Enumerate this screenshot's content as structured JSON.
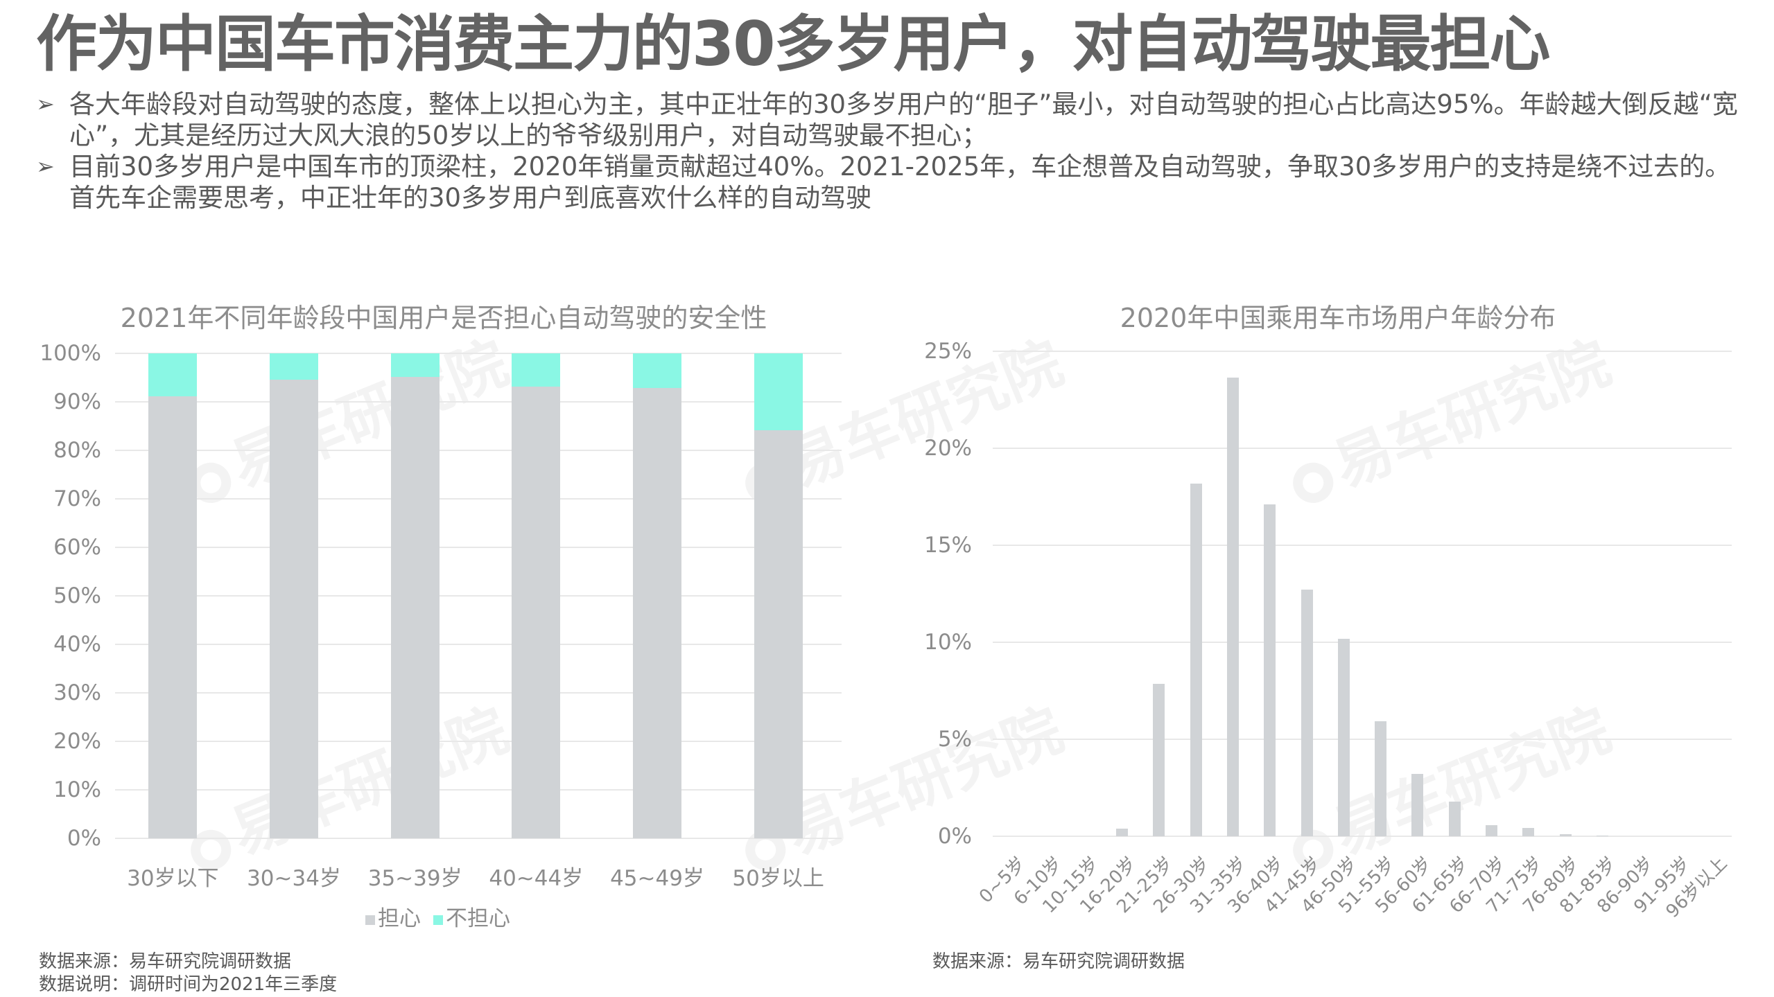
{
  "page": {
    "title": "作为中国车市消费主力的30多岁用户，对自动驾驶最担心",
    "bullets": [
      {
        "icon": "arrow-bullet-icon",
        "text": "各大年龄段对自动驾驶的态度，整体上以担心为主，其中正壮年的30多岁用户的“胆子”最小，对自动驾驶的担心占比高达95%。年龄越大倒反越“宽心”，尤其是经历过大风大浪的50岁以上的爷爷级别用户，对自动驾驶最不担心；"
      },
      {
        "icon": "arrow-bullet-icon",
        "text": "目前30多岁用户是中国车市的顶梁柱，2020年销量贡献超过40%。2021-2025年，车企想普及自动驾驶，争取30多岁用户的支持是绕不过去的。首先车企需要思考，中正壮年的30多岁用户到底喜欢什么样的自动驾驶"
      }
    ],
    "bullet_mark": "➢",
    "watermark": "易车研究院",
    "colors": {
      "worried": "#d0d3d6",
      "not_worried": "#8af7e4",
      "bar": "#d0d3d6",
      "grid": "#e8e8e8",
      "text": "#8c8c8c",
      "title": "#636363"
    }
  },
  "left_chart": {
    "title": "2021年不同年龄段中国用户是否担心自动驾驶的安全性",
    "yticks": [
      "100%",
      "90%",
      "80%",
      "70%",
      "60%",
      "50%",
      "40%",
      "30%",
      "20%",
      "10%",
      "0%"
    ],
    "legend": [
      {
        "label": "担心",
        "color": "#d0d3d6"
      },
      {
        "label": "不担心",
        "color": "#8af7e4"
      }
    ],
    "footnotes": [
      "数据来源：易车研究院调研数据",
      "数据说明：调研时间为2021年三季度"
    ]
  },
  "right_chart": {
    "title": "2020年中国乘用车市场用户年龄分布",
    "yticks": [
      "25%",
      "20%",
      "15%",
      "10%",
      "5%",
      "0%"
    ],
    "footnotes": [
      "数据来源：易车研究院调研数据"
    ]
  },
  "chart_data": [
    {
      "type": "bar",
      "stacked": true,
      "title": "2021年不同年龄段中国用户是否担心自动驾驶的安全性",
      "categories": [
        "30岁以下",
        "30~34岁",
        "35~39岁",
        "40~44岁",
        "45~49岁",
        "50岁以上"
      ],
      "series": [
        {
          "name": "担心",
          "values": [
            91.1,
            94.6,
            95.2,
            93.2,
            92.8,
            84.1
          ],
          "color": "#d0d3d6"
        },
        {
          "name": "不担心",
          "values": [
            8.9,
            5.4,
            4.8,
            6.8,
            7.2,
            15.9
          ],
          "color": "#8af7e4"
        }
      ],
      "xlabel": "",
      "ylabel": "",
      "ylim": [
        0,
        100
      ],
      "yunit": "%",
      "grid": true,
      "legend_position": "bottom"
    },
    {
      "type": "bar",
      "title": "2020年中国乘用车市场用户年龄分布",
      "categories": [
        "0~5岁",
        "6-10岁",
        "10-15岁",
        "16-20岁",
        "21-25岁",
        "26-30岁",
        "31-35岁",
        "36-40岁",
        "41-45岁",
        "46-50岁",
        "51-55岁",
        "56-60岁",
        "61-65岁",
        "66-70岁",
        "71-75岁",
        "76-80岁",
        "81-85岁",
        "86-90岁",
        "91-95岁",
        "96岁以上"
      ],
      "values": [
        0,
        0,
        0,
        0.39,
        7.85,
        18.17,
        23.63,
        17.12,
        12.73,
        10.17,
        5.92,
        3.21,
        1.78,
        0.56,
        0.44,
        0.12,
        0.03,
        0,
        0,
        0
      ],
      "xlabel": "",
      "ylabel": "",
      "ylim": [
        0,
        25
      ],
      "yunit": "%",
      "grid": true,
      "legend_position": "none",
      "xtick_rotation": -45
    }
  ]
}
